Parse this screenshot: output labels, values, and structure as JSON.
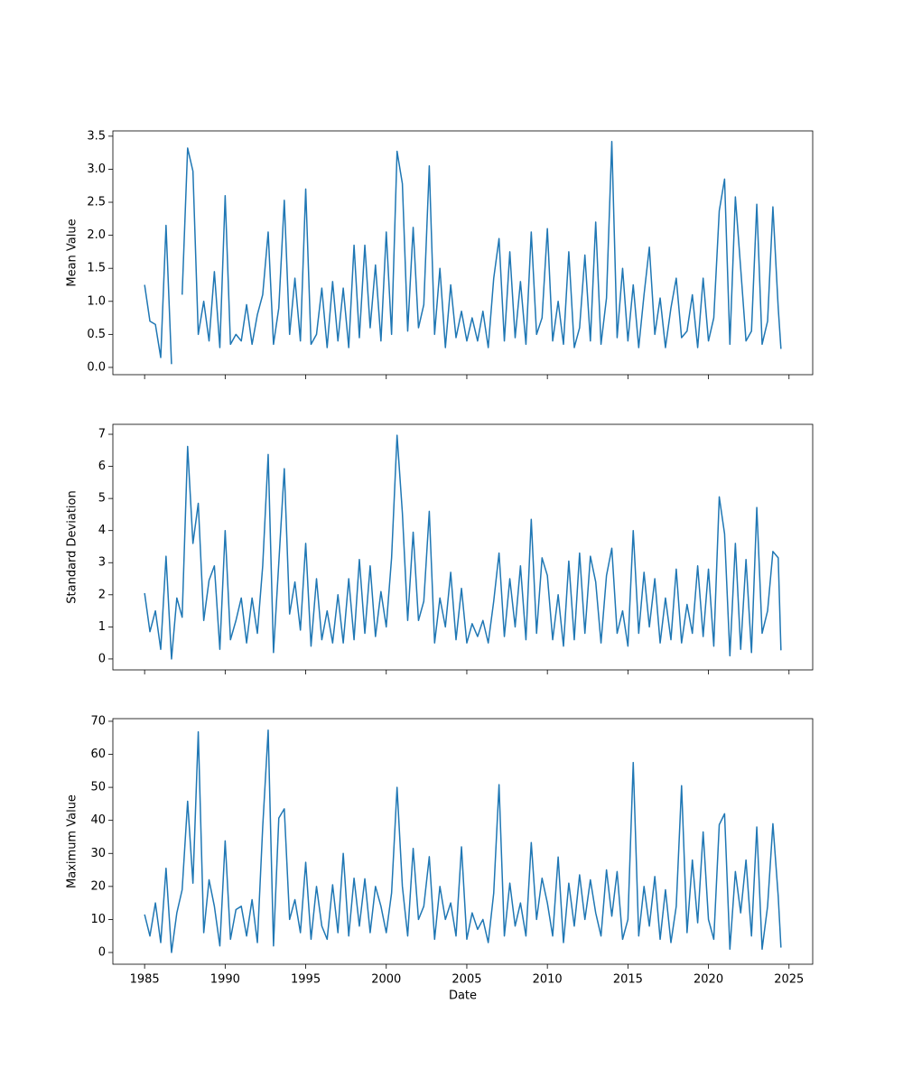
{
  "chart_data": [
    {
      "type": "line",
      "ylabel": "Mean Value",
      "color": "#1f77b4",
      "xlim": [
        1983.03,
        2026.47
      ],
      "ylim": [
        -0.11,
        3.58
      ],
      "xticks": [
        1985,
        1990,
        1995,
        2000,
        2005,
        2010,
        2015,
        2020,
        2025
      ],
      "yticks": [
        {
          "value": 0,
          "label": "0.0"
        },
        0.5,
        {
          "value": 1,
          "label": "1.0"
        },
        1.5,
        {
          "value": 2,
          "label": "2.0"
        },
        2.5,
        {
          "value": 3,
          "label": "3.0"
        },
        3.5
      ],
      "x": [
        1985,
        1985.33,
        1985.67,
        1986,
        1986.33,
        1986.67,
        1987,
        1987.33,
        1987.67,
        1988,
        1988.33,
        1988.67,
        1989,
        1989.33,
        1989.67,
        1990,
        1990.33,
        1990.67,
        1991,
        1991.33,
        1991.67,
        1992,
        1992.33,
        1992.67,
        1993,
        1993.33,
        1993.67,
        1994,
        1994.33,
        1994.67,
        1995,
        1995.33,
        1995.67,
        1996,
        1996.33,
        1996.67,
        1997,
        1997.33,
        1997.67,
        1998,
        1998.33,
        1998.67,
        1999,
        1999.33,
        1999.67,
        2000,
        2000.33,
        2000.67,
        2001,
        2001.33,
        2001.67,
        2002,
        2002.33,
        2002.67,
        2003,
        2003.33,
        2003.67,
        2004,
        2004.33,
        2004.67,
        2005,
        2005.33,
        2005.67,
        2006,
        2006.33,
        2006.67,
        2007,
        2007.33,
        2007.67,
        2008,
        2008.33,
        2008.67,
        2009,
        2009.33,
        2009.67,
        2010,
        2010.33,
        2010.67,
        2011,
        2011.33,
        2011.67,
        2012,
        2012.33,
        2012.67,
        2013,
        2013.33,
        2013.67,
        2014,
        2014.33,
        2014.67,
        2015,
        2015.33,
        2015.67,
        2016,
        2016.33,
        2016.67,
        2017,
        2017.33,
        2017.67,
        2018,
        2018.33,
        2018.67,
        2019,
        2019.33,
        2019.67,
        2020,
        2020.33,
        2020.67,
        2021,
        2021.33,
        2021.67,
        2022,
        2022.33,
        2022.67,
        2023,
        2023.33,
        2023.67,
        2024,
        2024.33,
        2024.5
      ],
      "values": [
        1.25,
        0.7,
        0.65,
        0.15,
        2.15,
        0.05,
        null,
        1.1,
        3.32,
        2.97,
        0.5,
        1.0,
        0.4,
        1.45,
        0.3,
        2.6,
        0.35,
        0.5,
        0.4,
        0.95,
        0.35,
        0.8,
        1.1,
        2.05,
        0.35,
        0.9,
        2.53,
        0.5,
        1.35,
        0.4,
        2.7,
        0.35,
        0.5,
        1.2,
        0.3,
        1.3,
        0.4,
        1.2,
        0.3,
        1.85,
        0.45,
        1.85,
        0.6,
        1.55,
        0.4,
        2.05,
        0.5,
        3.27,
        2.78,
        0.55,
        2.12,
        0.6,
        0.95,
        3.05,
        0.5,
        1.5,
        0.3,
        1.25,
        0.45,
        0.85,
        0.4,
        0.75,
        0.4,
        0.85,
        0.3,
        1.35,
        1.95,
        0.4,
        1.75,
        0.45,
        1.3,
        0.35,
        2.05,
        0.5,
        0.75,
        2.1,
        0.4,
        1.0,
        0.35,
        1.75,
        0.3,
        0.6,
        1.7,
        0.4,
        2.2,
        0.35,
        1.05,
        3.42,
        0.45,
        1.5,
        0.4,
        1.25,
        0.3,
        1.1,
        1.82,
        0.5,
        1.05,
        0.3,
        0.9,
        1.35,
        0.45,
        0.55,
        1.1,
        0.3,
        1.35,
        0.4,
        0.75,
        2.37,
        2.85,
        0.35,
        2.58,
        1.5,
        0.4,
        0.55,
        2.47,
        0.35,
        0.7,
        2.43,
        0.9,
        0.28
      ]
    },
    {
      "type": "line",
      "ylabel": "Standard Deviation",
      "color": "#1f77b4",
      "xlim": [
        1983.03,
        2026.47
      ],
      "ylim": [
        -0.34,
        7.31
      ],
      "xticks": [
        1985,
        1990,
        1995,
        2000,
        2005,
        2010,
        2015,
        2020,
        2025
      ],
      "yticks": [
        0,
        1,
        2,
        3,
        4,
        5,
        6,
        7
      ],
      "x": [
        1985,
        1985.33,
        1985.67,
        1986,
        1986.33,
        1986.67,
        1987,
        1987.33,
        1987.67,
        1988,
        1988.33,
        1988.67,
        1989,
        1989.33,
        1989.67,
        1990,
        1990.33,
        1990.67,
        1991,
        1991.33,
        1991.67,
        1992,
        1992.33,
        1992.67,
        1993,
        1993.33,
        1993.67,
        1994,
        1994.33,
        1994.67,
        1995,
        1995.33,
        1995.67,
        1996,
        1996.33,
        1996.67,
        1997,
        1997.33,
        1997.67,
        1998,
        1998.33,
        1998.67,
        1999,
        1999.33,
        1999.67,
        2000,
        2000.33,
        2000.67,
        2001,
        2001.33,
        2001.67,
        2002,
        2002.33,
        2002.67,
        2003,
        2003.33,
        2003.67,
        2004,
        2004.33,
        2004.67,
        2005,
        2005.33,
        2005.67,
        2006,
        2006.33,
        2006.67,
        2007,
        2007.33,
        2007.67,
        2008,
        2008.33,
        2008.67,
        2009,
        2009.33,
        2009.67,
        2010,
        2010.33,
        2010.67,
        2011,
        2011.33,
        2011.67,
        2012,
        2012.33,
        2012.67,
        2013,
        2013.33,
        2013.67,
        2014,
        2014.33,
        2014.67,
        2015,
        2015.33,
        2015.67,
        2016,
        2016.33,
        2016.67,
        2017,
        2017.33,
        2017.67,
        2018,
        2018.33,
        2018.67,
        2019,
        2019.33,
        2019.67,
        2020,
        2020.33,
        2020.67,
        2021,
        2021.33,
        2021.67,
        2022,
        2022.33,
        2022.67,
        2023,
        2023.33,
        2023.67,
        2024,
        2024.33,
        2024.5
      ],
      "values": [
        2.05,
        0.85,
        1.5,
        0.3,
        3.2,
        0.0,
        1.9,
        1.3,
        6.62,
        3.6,
        4.85,
        1.2,
        2.45,
        2.9,
        0.3,
        4.0,
        0.6,
        1.2,
        1.9,
        0.5,
        1.9,
        0.8,
        2.9,
        6.37,
        0.2,
        3.0,
        5.93,
        1.4,
        2.4,
        0.9,
        3.6,
        0.4,
        2.5,
        0.6,
        1.5,
        0.5,
        2.0,
        0.5,
        2.5,
        0.6,
        3.1,
        0.8,
        2.9,
        0.7,
        2.1,
        1.0,
        3.15,
        6.97,
        4.55,
        1.2,
        3.95,
        1.2,
        1.8,
        4.6,
        0.5,
        1.9,
        1.0,
        2.7,
        0.6,
        2.2,
        0.5,
        1.1,
        0.7,
        1.2,
        0.5,
        1.8,
        3.3,
        0.7,
        2.5,
        1.0,
        2.9,
        0.6,
        4.35,
        0.8,
        3.15,
        2.6,
        0.6,
        2.0,
        0.4,
        3.05,
        0.6,
        3.3,
        0.8,
        3.2,
        2.4,
        0.5,
        2.6,
        3.45,
        0.8,
        1.5,
        0.4,
        4.0,
        0.8,
        2.7,
        1.0,
        2.5,
        0.5,
        1.9,
        0.6,
        2.8,
        0.5,
        1.7,
        0.8,
        2.9,
        0.7,
        2.8,
        0.4,
        5.05,
        3.9,
        0.1,
        3.6,
        0.3,
        3.1,
        0.2,
        4.72,
        0.8,
        1.5,
        3.35,
        3.15,
        0.27
      ]
    },
    {
      "type": "line",
      "ylabel": "Maximum Value",
      "xlabel": "Date",
      "color": "#1f77b4",
      "xlim": [
        1983.03,
        2026.47
      ],
      "ylim": [
        -3.55,
        70.8
      ],
      "xticks": [
        1985,
        1990,
        1995,
        2000,
        2005,
        2010,
        2015,
        2020,
        2025
      ],
      "yticks": [
        0,
        10,
        20,
        30,
        40,
        50,
        60,
        70
      ],
      "x": [
        1985,
        1985.33,
        1985.67,
        1986,
        1986.33,
        1986.67,
        1987,
        1987.33,
        1987.67,
        1988,
        1988.33,
        1988.67,
        1989,
        1989.33,
        1989.67,
        1990,
        1990.33,
        1990.67,
        1991,
        1991.33,
        1991.67,
        1992,
        1992.33,
        1992.67,
        1993,
        1993.33,
        1993.67,
        1994,
        1994.33,
        1994.67,
        1995,
        1995.33,
        1995.67,
        1996,
        1996.33,
        1996.67,
        1997,
        1997.33,
        1997.67,
        1998,
        1998.33,
        1998.67,
        1999,
        1999.33,
        1999.67,
        2000,
        2000.33,
        2000.67,
        2001,
        2001.33,
        2001.67,
        2002,
        2002.33,
        2002.67,
        2003,
        2003.33,
        2003.67,
        2004,
        2004.33,
        2004.67,
        2005,
        2005.33,
        2005.67,
        2006,
        2006.33,
        2006.67,
        2007,
        2007.33,
        2007.67,
        2008,
        2008.33,
        2008.67,
        2009,
        2009.33,
        2009.67,
        2010,
        2010.33,
        2010.67,
        2011,
        2011.33,
        2011.67,
        2012,
        2012.33,
        2012.67,
        2013,
        2013.33,
        2013.67,
        2014,
        2014.33,
        2014.67,
        2015,
        2015.33,
        2015.67,
        2016,
        2016.33,
        2016.67,
        2017,
        2017.33,
        2017.67,
        2018,
        2018.33,
        2018.67,
        2019,
        2019.33,
        2019.67,
        2020,
        2020.33,
        2020.67,
        2021,
        2021.33,
        2021.67,
        2022,
        2022.33,
        2022.67,
        2023,
        2023.33,
        2023.67,
        2024,
        2024.33,
        2024.5
      ],
      "values": [
        11.5,
        5.0,
        15,
        3,
        25.5,
        0,
        12,
        19,
        45.8,
        21,
        66.8,
        6,
        22,
        14,
        2,
        33.8,
        4,
        13,
        14,
        5,
        16,
        3,
        38,
        67.3,
        2,
        40.7,
        43.5,
        10,
        16,
        6,
        27.3,
        4,
        20,
        8,
        4,
        20.5,
        6,
        30,
        5,
        22.5,
        8,
        22.3,
        6,
        20,
        14,
        6,
        18,
        50,
        20,
        5,
        31.5,
        10,
        14,
        29,
        4,
        20,
        10,
        15,
        5,
        32,
        4,
        12,
        7,
        10,
        3,
        18,
        50.8,
        5,
        21,
        8,
        15,
        5,
        33.3,
        10,
        22.5,
        15,
        5,
        28.9,
        3,
        21,
        8,
        23.5,
        10,
        22,
        12,
        5,
        25,
        11,
        24.5,
        4,
        10,
        57.5,
        5,
        20,
        8,
        23,
        4,
        19,
        3,
        14,
        50.5,
        6,
        28,
        9,
        36.5,
        10,
        4,
        38.7,
        42,
        1,
        24.5,
        12,
        28,
        5,
        38,
        1,
        14,
        39,
        17,
        1.5
      ]
    }
  ]
}
